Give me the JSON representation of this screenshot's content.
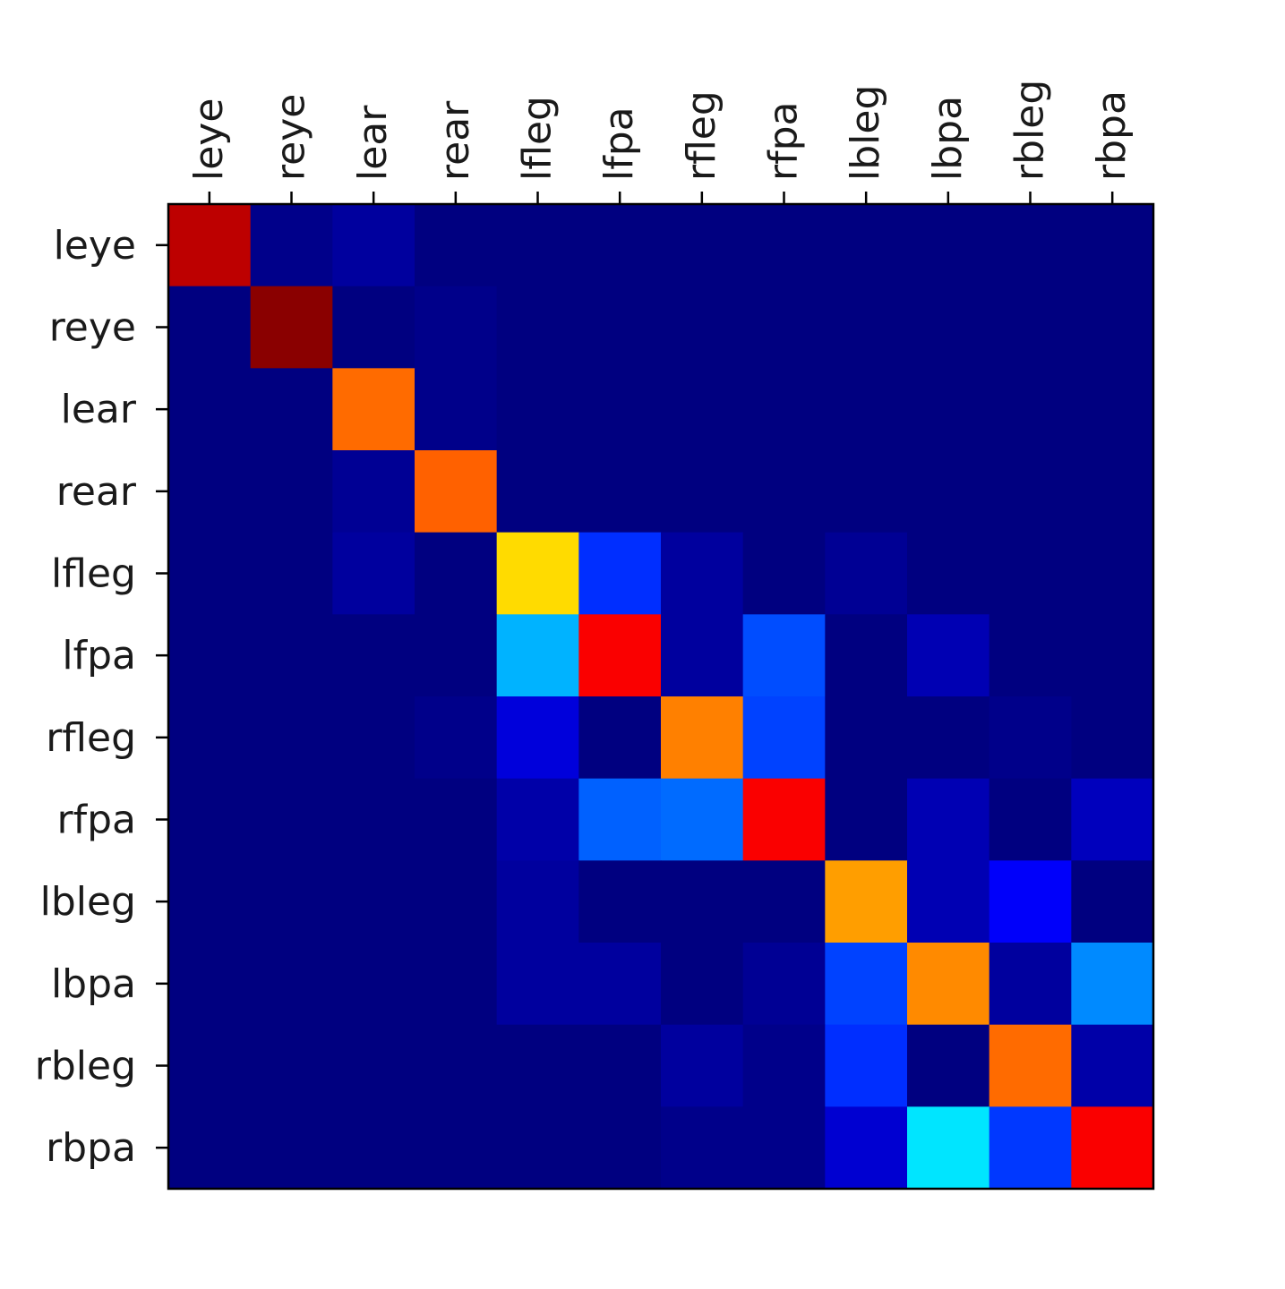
{
  "chart_data": {
    "type": "heatmap",
    "title": "",
    "xlabel": "",
    "ylabel": "",
    "x_labels": [
      "leye",
      "reye",
      "lear",
      "rear",
      "lfleg",
      "lfpa",
      "rfleg",
      "rfpa",
      "lbleg",
      "lbpa",
      "rbleg",
      "rbpa"
    ],
    "y_labels": [
      "leye",
      "reye",
      "lear",
      "rear",
      "lfleg",
      "lfpa",
      "rfleg",
      "rfpa",
      "lbleg",
      "lbpa",
      "rbleg",
      "rbpa"
    ],
    "x_axis_position": "top",
    "x_label_rotation": -90,
    "colormap": "jet",
    "value_range": [
      0,
      1
    ],
    "grid": false,
    "legend": "none",
    "values": [
      [
        0.94,
        0.01,
        0.03,
        0.0,
        0.0,
        0.0,
        0.0,
        0.0,
        0.0,
        0.0,
        0.0,
        0.0
      ],
      [
        0.0,
        0.99,
        0.0,
        0.01,
        0.0,
        0.0,
        0.0,
        0.0,
        0.0,
        0.0,
        0.0,
        0.0
      ],
      [
        0.0,
        0.0,
        0.77,
        0.01,
        0.0,
        0.0,
        0.0,
        0.0,
        0.0,
        0.0,
        0.0,
        0.0
      ],
      [
        0.0,
        0.0,
        0.02,
        0.78,
        0.0,
        0.0,
        0.0,
        0.0,
        0.0,
        0.0,
        0.0,
        0.0
      ],
      [
        0.0,
        0.0,
        0.03,
        0.0,
        0.66,
        0.17,
        0.03,
        0.0,
        0.02,
        0.0,
        0.0,
        0.0
      ],
      [
        0.0,
        0.0,
        0.0,
        0.0,
        0.3,
        0.88,
        0.03,
        0.2,
        0.0,
        0.05,
        0.0,
        0.0
      ],
      [
        0.0,
        0.0,
        0.0,
        0.01,
        0.09,
        0.0,
        0.75,
        0.19,
        0.0,
        0.0,
        0.01,
        0.0
      ],
      [
        0.0,
        0.0,
        0.0,
        0.0,
        0.04,
        0.22,
        0.23,
        0.88,
        0.0,
        0.05,
        0.0,
        0.06
      ],
      [
        0.0,
        0.0,
        0.0,
        0.0,
        0.03,
        0.0,
        0.0,
        0.0,
        0.72,
        0.05,
        0.12,
        0.0
      ],
      [
        0.0,
        0.0,
        0.0,
        0.0,
        0.03,
        0.03,
        0.0,
        0.02,
        0.19,
        0.74,
        0.03,
        0.26
      ],
      [
        0.0,
        0.0,
        0.0,
        0.0,
        0.0,
        0.0,
        0.03,
        0.01,
        0.17,
        0.0,
        0.77,
        0.04
      ],
      [
        0.0,
        0.0,
        0.0,
        0.0,
        0.0,
        0.0,
        0.01,
        0.01,
        0.08,
        0.35,
        0.18,
        0.88
      ]
    ]
  }
}
